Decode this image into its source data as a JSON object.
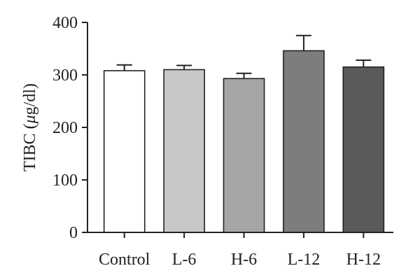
{
  "chart_data": {
    "type": "bar",
    "ylabel_prefix": "TIBC (",
    "ylabel_unit_italic": "μ",
    "ylabel_suffix": "g/dl)",
    "ylim": [
      0,
      400
    ],
    "yticks": [
      "0",
      "100",
      "200",
      "300",
      "400"
    ],
    "categories": [
      "Control",
      "L-6",
      "H-6",
      "L-12",
      "H-12"
    ],
    "values": [
      308,
      310,
      293,
      346,
      315
    ],
    "errors": [
      11,
      8,
      10,
      29,
      13
    ],
    "colors": [
      "#ffffff",
      "#c8c8c8",
      "#a6a6a6",
      "#7d7d7d",
      "#5a5a5a"
    ],
    "grid": false
  }
}
